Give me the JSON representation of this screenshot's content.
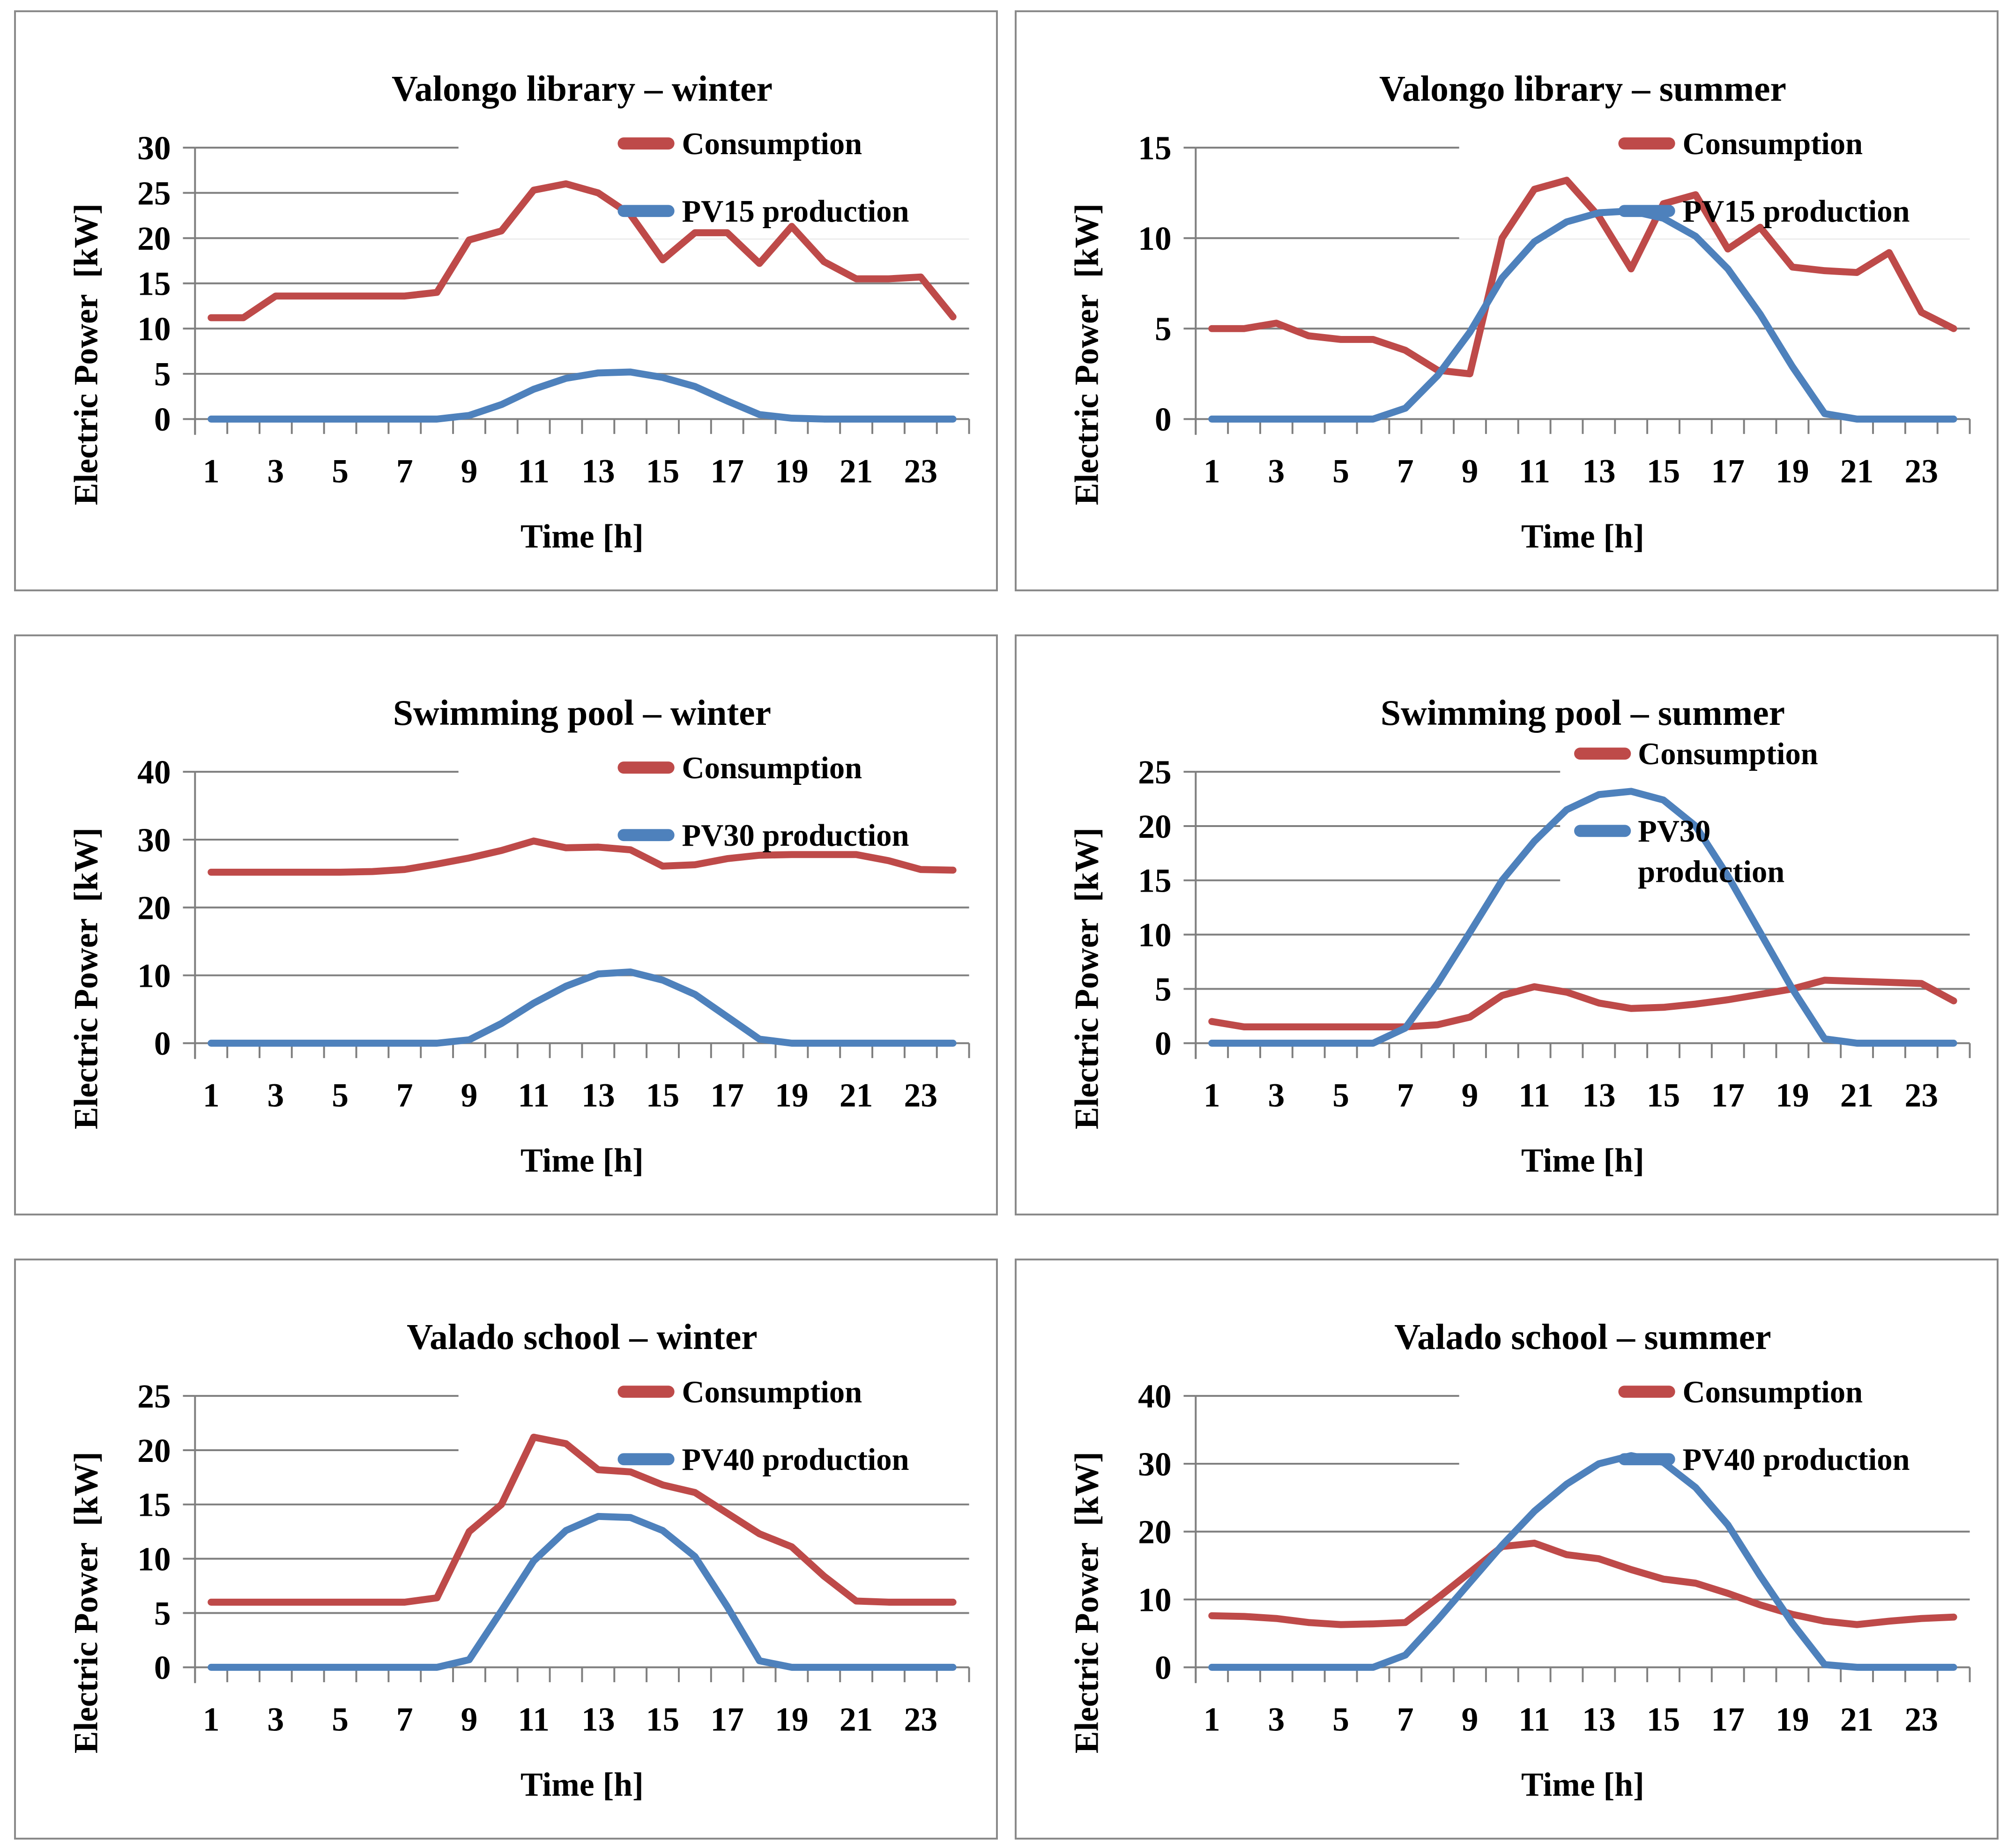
{
  "colors": {
    "consumption": "#BE4A49",
    "production": "#4E81BC",
    "gridline": "#7F7F7F",
    "axis": "#7F7F7F",
    "tick": "#7F7F7F",
    "text": "#000000",
    "panel_border": "#8A8A8A",
    "legend_bg": "#FFFFFF"
  },
  "chart_data": [
    {
      "type": "line",
      "title": "Valongo library – winter",
      "xlabel": "Time [h]",
      "ylabel": "Electric Power  [kW]",
      "x": [
        1,
        2,
        3,
        4,
        5,
        6,
        7,
        8,
        9,
        10,
        11,
        12,
        13,
        14,
        15,
        16,
        17,
        18,
        19,
        20,
        21,
        22,
        23,
        24
      ],
      "x_tick_labels": [
        "1",
        "3",
        "5",
        "7",
        "9",
        "11",
        "13",
        "15",
        "17",
        "19",
        "21",
        "23"
      ],
      "ylim": [
        0,
        30
      ],
      "ytick_step": 5,
      "grid": true,
      "legend_position": "top-right-overlay",
      "legend_wrap_second": false,
      "series": [
        {
          "name": "Consumption",
          "color_key": "consumption",
          "values": [
            11.2,
            11.2,
            13.6,
            13.6,
            13.6,
            13.6,
            13.6,
            14.0,
            19.8,
            20.8,
            25.3,
            26.0,
            25.0,
            22.6,
            17.6,
            20.6,
            20.6,
            17.2,
            21.3,
            17.4,
            15.5,
            15.5,
            15.7,
            11.3
          ]
        },
        {
          "name": "PV15 production",
          "color_key": "production",
          "values": [
            0,
            0,
            0,
            0,
            0,
            0,
            0,
            0,
            0.4,
            1.6,
            3.3,
            4.5,
            5.1,
            5.2,
            4.6,
            3.6,
            2.0,
            0.5,
            0.1,
            0,
            0,
            0,
            0,
            0
          ]
        }
      ]
    },
    {
      "type": "line",
      "title": "Valongo library – summer",
      "xlabel": "Time [h]",
      "ylabel": "Electric Power  [kW]",
      "x": [
        1,
        2,
        3,
        4,
        5,
        6,
        7,
        8,
        9,
        10,
        11,
        12,
        13,
        14,
        15,
        16,
        17,
        18,
        19,
        20,
        21,
        22,
        23,
        24
      ],
      "x_tick_labels": [
        "1",
        "3",
        "5",
        "7",
        "9",
        "11",
        "13",
        "15",
        "17",
        "19",
        "21",
        "23"
      ],
      "ylim": [
        0,
        15
      ],
      "ytick_step": 5,
      "grid": true,
      "legend_position": "top-right-overlay",
      "legend_wrap_second": false,
      "series": [
        {
          "name": "Consumption",
          "color_key": "consumption",
          "values": [
            5.0,
            5.0,
            5.3,
            4.6,
            4.4,
            4.4,
            3.8,
            2.7,
            2.5,
            10.0,
            12.7,
            13.2,
            11.2,
            8.3,
            11.9,
            12.4,
            9.4,
            10.6,
            8.4,
            8.2,
            8.1,
            9.2,
            5.9,
            5.0
          ]
        },
        {
          "name": "PV15 production",
          "color_key": "production",
          "values": [
            0,
            0,
            0,
            0,
            0,
            0,
            0.6,
            2.4,
            4.8,
            7.8,
            9.8,
            10.9,
            11.4,
            11.5,
            11.1,
            10.1,
            8.3,
            5.8,
            2.9,
            0.3,
            0,
            0,
            0,
            0
          ]
        }
      ]
    },
    {
      "type": "line",
      "title": "Swimming pool – winter",
      "xlabel": "Time [h]",
      "ylabel": "Electric Power  [kW]",
      "x": [
        1,
        2,
        3,
        4,
        5,
        6,
        7,
        8,
        9,
        10,
        11,
        12,
        13,
        14,
        15,
        16,
        17,
        18,
        19,
        20,
        21,
        22,
        23,
        24
      ],
      "x_tick_labels": [
        "1",
        "3",
        "5",
        "7",
        "9",
        "11",
        "13",
        "15",
        "17",
        "19",
        "21",
        "23"
      ],
      "ylim": [
        0,
        40
      ],
      "ytick_step": 10,
      "grid": true,
      "legend_position": "top-right-overlay",
      "legend_wrap_second": false,
      "series": [
        {
          "name": "Consumption",
          "color_key": "consumption",
          "values": [
            25.2,
            25.2,
            25.2,
            25.2,
            25.2,
            25.3,
            25.6,
            26.4,
            27.3,
            28.4,
            29.8,
            28.8,
            28.9,
            28.5,
            26.1,
            26.3,
            27.2,
            27.7,
            27.8,
            27.8,
            27.8,
            26.9,
            25.6,
            25.5
          ]
        },
        {
          "name": "PV30 production",
          "color_key": "production",
          "values": [
            0,
            0,
            0,
            0,
            0,
            0,
            0,
            0,
            0.5,
            2.9,
            5.9,
            8.4,
            10.2,
            10.5,
            9.3,
            7.2,
            3.9,
            0.6,
            0,
            0,
            0,
            0,
            0,
            0
          ]
        }
      ]
    },
    {
      "type": "line",
      "title": "Swimming pool – summer",
      "xlabel": "Time [h]",
      "ylabel": "Electric Power  [kW]",
      "x": [
        1,
        2,
        3,
        4,
        5,
        6,
        7,
        8,
        9,
        10,
        11,
        12,
        13,
        14,
        15,
        16,
        17,
        18,
        19,
        20,
        21,
        22,
        23,
        24
      ],
      "x_tick_labels": [
        "1",
        "3",
        "5",
        "7",
        "9",
        "11",
        "13",
        "15",
        "17",
        "19",
        "21",
        "23"
      ],
      "ylim": [
        0,
        25
      ],
      "ytick_step": 5,
      "grid": true,
      "legend_position": "top-right-overlay",
      "legend_wrap_second": true,
      "series": [
        {
          "name": "Consumption",
          "color_key": "consumption",
          "values": [
            2.0,
            1.5,
            1.5,
            1.5,
            1.5,
            1.5,
            1.5,
            1.7,
            2.4,
            4.4,
            5.2,
            4.7,
            3.7,
            3.2,
            3.3,
            3.6,
            4.0,
            4.5,
            5.0,
            5.8,
            5.7,
            5.6,
            5.5,
            3.9
          ]
        },
        {
          "name": "PV30 production",
          "color_key": "production",
          "wrapped_label": [
            "PV30",
            "production"
          ],
          "values": [
            0,
            0,
            0,
            0,
            0,
            0,
            1.4,
            5.5,
            10.2,
            15.0,
            18.6,
            21.5,
            22.9,
            23.2,
            22.4,
            20.0,
            15.4,
            10.2,
            5.0,
            0.4,
            0,
            0,
            0,
            0
          ]
        }
      ]
    },
    {
      "type": "line",
      "title": "Valado school – winter",
      "xlabel": "Time [h]",
      "ylabel": "Electric Power  [kW]",
      "x": [
        1,
        2,
        3,
        4,
        5,
        6,
        7,
        8,
        9,
        10,
        11,
        12,
        13,
        14,
        15,
        16,
        17,
        18,
        19,
        20,
        21,
        22,
        23,
        24
      ],
      "x_tick_labels": [
        "1",
        "3",
        "5",
        "7",
        "9",
        "11",
        "13",
        "15",
        "17",
        "19",
        "21",
        "23"
      ],
      "ylim": [
        0,
        25
      ],
      "ytick_step": 5,
      "grid": true,
      "legend_position": "top-right-overlay",
      "legend_wrap_second": false,
      "series": [
        {
          "name": "Consumption",
          "color_key": "consumption",
          "values": [
            6.0,
            6.0,
            6.0,
            6.0,
            6.0,
            6.0,
            6.0,
            6.4,
            12.5,
            15.0,
            21.2,
            20.6,
            18.2,
            18.0,
            16.8,
            16.1,
            14.2,
            12.3,
            11.1,
            8.4,
            6.1,
            6.0,
            6.0,
            6.0
          ]
        },
        {
          "name": "PV40 production",
          "color_key": "production",
          "values": [
            0,
            0,
            0,
            0,
            0,
            0,
            0,
            0,
            0.7,
            5.2,
            9.8,
            12.6,
            13.9,
            13.8,
            12.6,
            10.2,
            5.6,
            0.6,
            0,
            0,
            0,
            0,
            0,
            0
          ]
        }
      ]
    },
    {
      "type": "line",
      "title": "Valado school – summer",
      "xlabel": "Time [h]",
      "ylabel": "Electric Power  [kW]",
      "x": [
        1,
        2,
        3,
        4,
        5,
        6,
        7,
        8,
        9,
        10,
        11,
        12,
        13,
        14,
        15,
        16,
        17,
        18,
        19,
        20,
        21,
        22,
        23,
        24
      ],
      "x_tick_labels": [
        "1",
        "3",
        "5",
        "7",
        "9",
        "11",
        "13",
        "15",
        "17",
        "19",
        "21",
        "23"
      ],
      "ylim": [
        0,
        40
      ],
      "ytick_step": 10,
      "grid": true,
      "legend_position": "top-right-overlay",
      "legend_wrap_second": false,
      "series": [
        {
          "name": "Consumption",
          "color_key": "consumption",
          "values": [
            7.6,
            7.5,
            7.2,
            6.6,
            6.3,
            6.4,
            6.6,
            10.2,
            14.0,
            17.8,
            18.3,
            16.6,
            16.0,
            14.4,
            13.0,
            12.4,
            10.9,
            9.2,
            7.8,
            6.8,
            6.3,
            6.8,
            7.2,
            7.4
          ]
        },
        {
          "name": "PV40 production",
          "color_key": "production",
          "values": [
            0,
            0,
            0,
            0,
            0,
            0,
            1.8,
            7.0,
            12.5,
            18.0,
            23.0,
            27.0,
            30.0,
            31.2,
            30.2,
            26.5,
            21.0,
            13.5,
            6.5,
            0.4,
            0,
            0,
            0,
            0
          ]
        }
      ]
    }
  ]
}
